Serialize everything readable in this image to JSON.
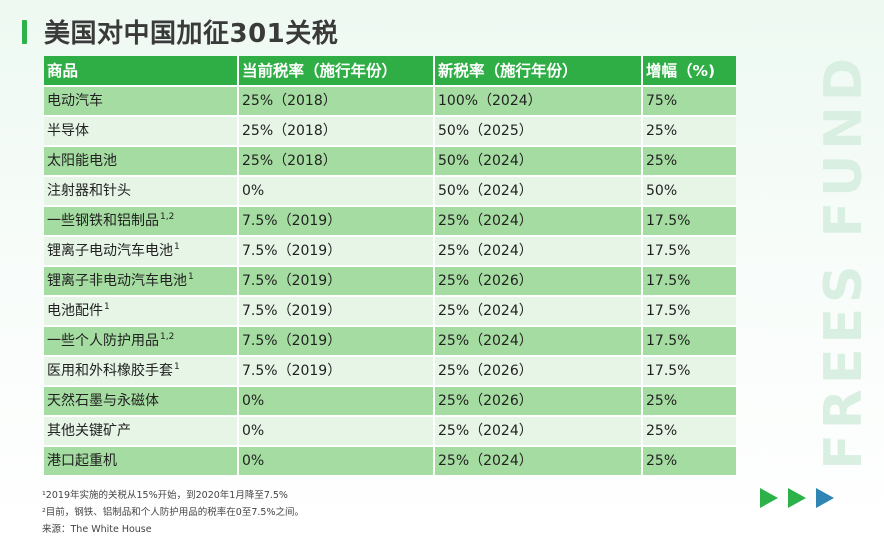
{
  "title": "美国对中国加征301关税",
  "watermark": "FREES FUND",
  "table": {
    "headers": [
      "商品",
      "当前税率（施行年份）",
      "新税率（施行年份）",
      "增幅（%)"
    ],
    "rows": [
      {
        "product": "电动汽车",
        "note": "",
        "current": "25%（2018）",
        "new": "100%（2024）",
        "increase": "75%"
      },
      {
        "product": "半导体",
        "note": "",
        "current": "25%（2018）",
        "new": "50%（2025）",
        "increase": "25%"
      },
      {
        "product": "太阳能电池",
        "note": "",
        "current": "25%（2018）",
        "new": "50%（2024）",
        "increase": "25%"
      },
      {
        "product": "注射器和针头",
        "note": "",
        "current": "0%",
        "new": "50%（2024）",
        "increase": "50%"
      },
      {
        "product": "一些钢铁和铝制品",
        "note": "1,2",
        "current": "7.5%（2019）",
        "new": "25%（2024）",
        "increase": "17.5%"
      },
      {
        "product": "锂离子电动汽车电池",
        "note": "1",
        "current": "7.5%（2019）",
        "new": "25%（2024）",
        "increase": "17.5%"
      },
      {
        "product": "锂离子非电动汽车电池",
        "note": "1",
        "current": "7.5%（2019）",
        "new": "25%（2026）",
        "increase": "17.5%"
      },
      {
        "product": "电池配件",
        "note": "1",
        "current": "7.5%（2019）",
        "new": "25%（2024）",
        "increase": "17.5%"
      },
      {
        "product": "一些个人防护用品",
        "note": "1,2",
        "current": "7.5%（2019）",
        "new": "25%（2024）",
        "increase": "17.5%"
      },
      {
        "product": "医用和外科橡胶手套",
        "note": "1",
        "current": "7.5%（2019）",
        "new": "25%（2026）",
        "increase": "17.5%"
      },
      {
        "product": "天然石墨与永磁体",
        "note": "",
        "current": "0%",
        "new": "25%（2026）",
        "increase": "25%"
      },
      {
        "product": "其他关键矿产",
        "note": "",
        "current": "0%",
        "new": "25%（2024）",
        "increase": "25%"
      },
      {
        "product": "港口起重机",
        "note": "",
        "current": "0%",
        "new": "25%（2024）",
        "increase": "25%"
      }
    ]
  },
  "footnotes": [
    "¹2019年实施的关税从15%开始，到2020年1月降至7.5%",
    "²目前，钢铁、铝制品和个人防护用品的税率在0至7.5%之间。",
    "来源：The White House"
  ],
  "colors": {
    "header_green": "#2fae46",
    "row_dark": "#a5dca1",
    "row_light": "#e7f5e7",
    "arrow_green": "#2db24a",
    "arrow_blue": "#2f86b4"
  },
  "icons": [
    "play-arrow-icon",
    "play-arrow-icon",
    "play-arrow-icon"
  ]
}
